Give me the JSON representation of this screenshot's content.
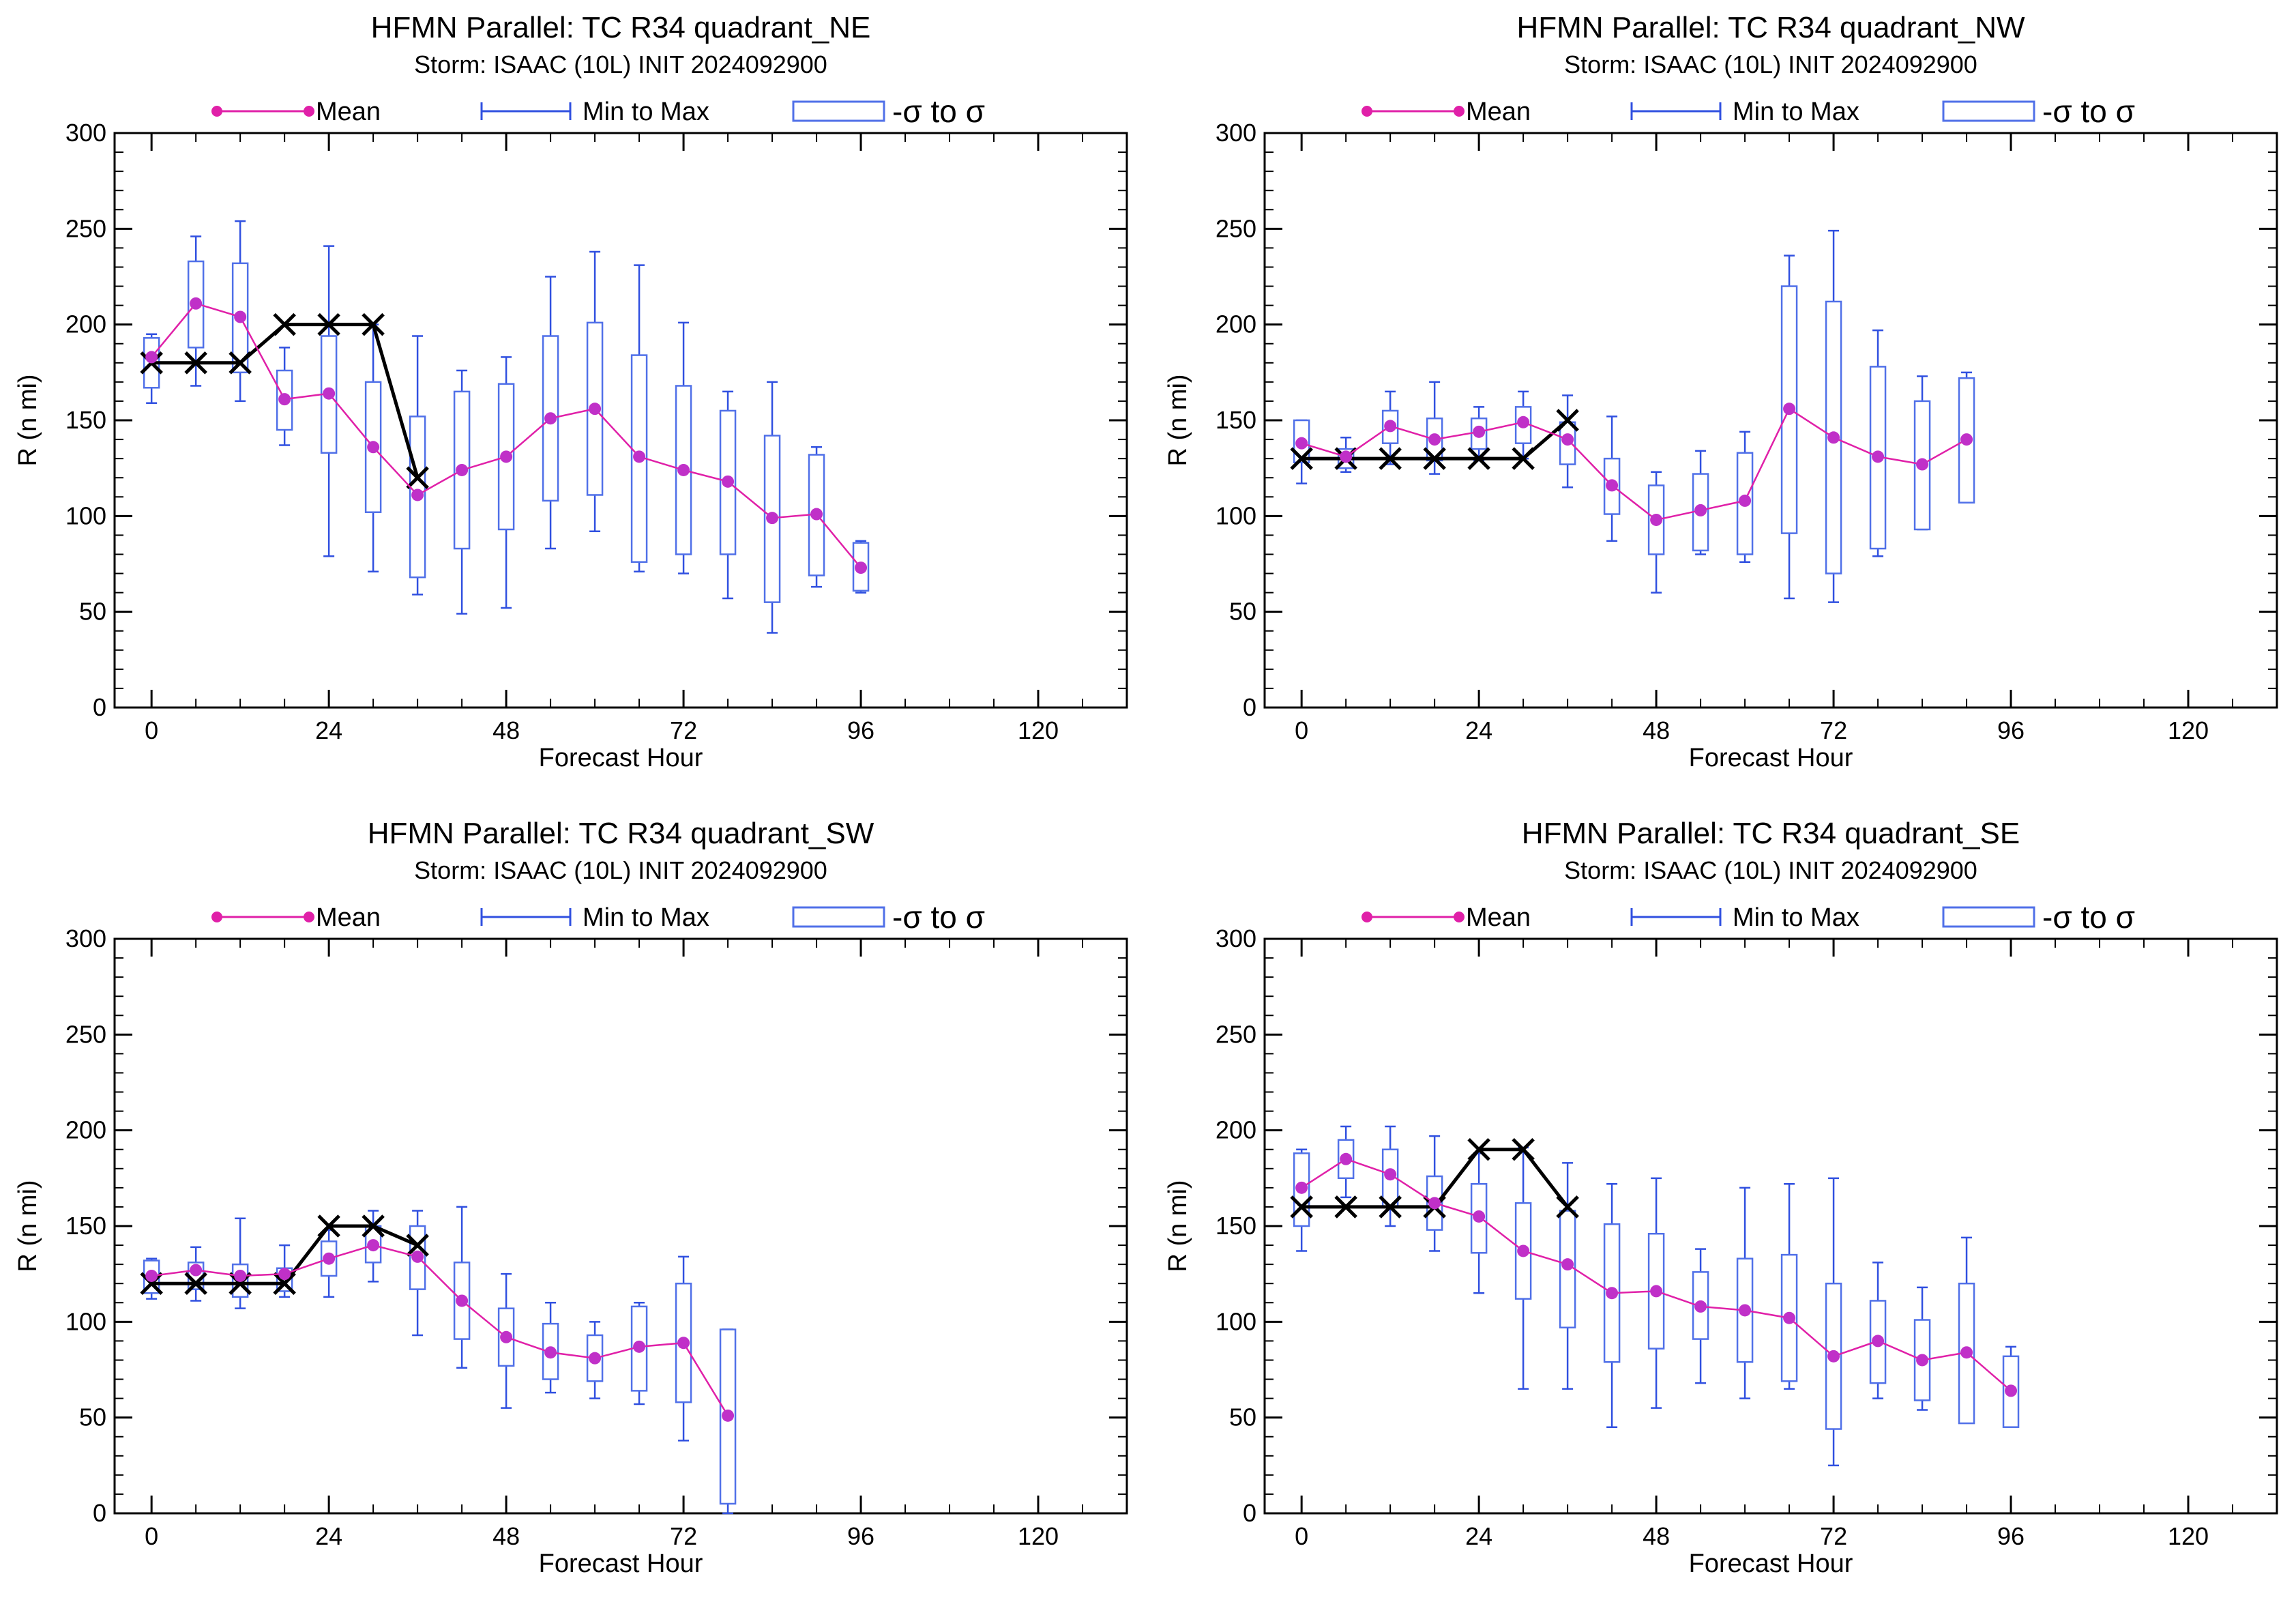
{
  "colors": {
    "mean": "#e020a8",
    "mean_marker": "#c030c8",
    "spread": "#3050e0",
    "sigma_box": "#5070e8",
    "best_track": "#000000"
  },
  "legend": {
    "mean": "Mean",
    "range": "Min to Max",
    "sigma": "-σ to σ"
  },
  "chart_data": [
    {
      "type": "box",
      "title": "HFMN Parallel: TC  R34 quadrant_NE",
      "subtitle": "Storm: ISAAC (10L) INIT 2024092900",
      "xlabel": "Forecast Hour",
      "ylabel": "R (n mi)",
      "xlim": [
        -5,
        132
      ],
      "ylim": [
        0,
        300
      ],
      "xticks": [
        0,
        24,
        48,
        72,
        96,
        120
      ],
      "yticks": [
        0,
        50,
        100,
        150,
        200,
        250,
        300
      ],
      "x": [
        0,
        6,
        12,
        18,
        24,
        30,
        36,
        42,
        48,
        54,
        60,
        66,
        72,
        78,
        84,
        90,
        96
      ],
      "mean": [
        183,
        211,
        204,
        161,
        164,
        136,
        111,
        124,
        131,
        151,
        156,
        131,
        124,
        118,
        99,
        101,
        73
      ],
      "min": [
        159,
        168,
        160,
        137,
        79,
        71,
        59,
        49,
        52,
        83,
        92,
        71,
        70,
        57,
        39,
        63,
        60
      ],
      "max": [
        195,
        246,
        254,
        188,
        241,
        200,
        194,
        176,
        183,
        225,
        238,
        231,
        201,
        165,
        170,
        136,
        87
      ],
      "sigma_low": [
        167,
        188,
        175,
        145,
        133,
        102,
        68,
        83,
        93,
        108,
        111,
        76,
        80,
        80,
        55,
        69,
        61
      ],
      "sigma_high": [
        193,
        233,
        232,
        176,
        194,
        170,
        152,
        165,
        169,
        194,
        201,
        184,
        168,
        155,
        142,
        132,
        86
      ],
      "best_track": {
        "x": [
          0,
          6,
          12,
          18,
          24,
          30,
          36
        ],
        "y": [
          180,
          180,
          180,
          200,
          200,
          200,
          120
        ]
      }
    },
    {
      "type": "box",
      "title": "HFMN Parallel: TC  R34 quadrant_NW",
      "subtitle": "Storm: ISAAC (10L) INIT 2024092900",
      "xlabel": "Forecast Hour",
      "ylabel": "R (n mi)",
      "xlim": [
        -5,
        132
      ],
      "ylim": [
        0,
        300
      ],
      "xticks": [
        0,
        24,
        48,
        72,
        96,
        120
      ],
      "yticks": [
        0,
        50,
        100,
        150,
        200,
        250,
        300
      ],
      "x": [
        0,
        6,
        12,
        18,
        24,
        30,
        36,
        42,
        48,
        54,
        60,
        66,
        72,
        78,
        84,
        90
      ],
      "mean": [
        138,
        131,
        147,
        140,
        144,
        149,
        140,
        116,
        98,
        103,
        108,
        156,
        141,
        131,
        127,
        140
      ],
      "min": [
        117,
        123,
        127,
        122,
        129,
        130,
        115,
        87,
        60,
        80,
        76,
        57,
        55,
        79,
        93,
        108
      ],
      "max": [
        150,
        141,
        165,
        170,
        157,
        165,
        163,
        152,
        123,
        134,
        144,
        236,
        249,
        197,
        173,
        175
      ],
      "sigma_low": [
        128,
        125,
        138,
        129,
        135,
        138,
        127,
        101,
        80,
        82,
        80,
        91,
        70,
        83,
        93,
        107
      ],
      "sigma_high": [
        150,
        135,
        155,
        151,
        151,
        157,
        149,
        130,
        116,
        122,
        133,
        220,
        212,
        178,
        160,
        172
      ],
      "best_track": {
        "x": [
          0,
          6,
          12,
          18,
          24,
          30,
          36
        ],
        "y": [
          130,
          130,
          130,
          130,
          130,
          130,
          150
        ]
      }
    },
    {
      "type": "box",
      "title": "HFMN Parallel: TC  R34 quadrant_SW",
      "subtitle": "Storm: ISAAC (10L) INIT 2024092900",
      "xlabel": "Forecast Hour",
      "ylabel": "R (n mi)",
      "xlim": [
        -5,
        132
      ],
      "ylim": [
        0,
        300
      ],
      "xticks": [
        0,
        24,
        48,
        72,
        96,
        120
      ],
      "yticks": [
        0,
        50,
        100,
        150,
        200,
        250,
        300
      ],
      "x": [
        0,
        6,
        12,
        18,
        24,
        30,
        36,
        42,
        48,
        54,
        60,
        66,
        72,
        78
      ],
      "mean": [
        124,
        127,
        124,
        125,
        133,
        140,
        134,
        111,
        92,
        84,
        81,
        87,
        89,
        51
      ],
      "min": [
        112,
        111,
        107,
        113,
        113,
        121,
        93,
        76,
        55,
        63,
        60,
        57,
        38,
        0
      ],
      "max": [
        133,
        139,
        154,
        140,
        148,
        158,
        158,
        160,
        125,
        110,
        100,
        110,
        134,
        96
      ],
      "sigma_low": [
        115,
        117,
        113,
        116,
        124,
        131,
        117,
        91,
        77,
        70,
        69,
        64,
        58,
        5
      ],
      "sigma_high": [
        132,
        131,
        130,
        128,
        142,
        150,
        150,
        131,
        107,
        99,
        93,
        108,
        120,
        96
      ],
      "best_track": {
        "x": [
          0,
          6,
          12,
          18,
          24,
          30,
          36
        ],
        "y": [
          120,
          120,
          120,
          120,
          150,
          150,
          140
        ]
      }
    },
    {
      "type": "box",
      "title": "HFMN Parallel: TC  R34 quadrant_SE",
      "subtitle": "Storm: ISAAC (10L) INIT 2024092900",
      "xlabel": "Forecast Hour",
      "ylabel": "R (n mi)",
      "xlim": [
        -5,
        132
      ],
      "ylim": [
        0,
        300
      ],
      "xticks": [
        0,
        24,
        48,
        72,
        96,
        120
      ],
      "yticks": [
        0,
        50,
        100,
        150,
        200,
        250,
        300
      ],
      "x": [
        0,
        6,
        12,
        18,
        24,
        30,
        36,
        42,
        48,
        54,
        60,
        66,
        72,
        78,
        84,
        90,
        96
      ],
      "mean": [
        170,
        185,
        177,
        162,
        155,
        137,
        130,
        115,
        116,
        108,
        106,
        102,
        82,
        90,
        80,
        84,
        64
      ],
      "min": [
        137,
        165,
        150,
        137,
        115,
        65,
        65,
        45,
        55,
        68,
        60,
        65,
        25,
        60,
        54,
        50,
        51
      ],
      "max": [
        190,
        202,
        202,
        197,
        188,
        191,
        183,
        172,
        175,
        138,
        170,
        172,
        175,
        131,
        118,
        144,
        87
      ],
      "sigma_low": [
        150,
        175,
        160,
        148,
        136,
        112,
        97,
        79,
        86,
        91,
        79,
        69,
        44,
        68,
        59,
        47,
        45
      ],
      "sigma_high": [
        188,
        195,
        190,
        176,
        172,
        162,
        158,
        151,
        146,
        126,
        133,
        135,
        120,
        111,
        101,
        120,
        82
      ],
      "best_track": {
        "x": [
          0,
          6,
          12,
          18,
          24,
          30,
          36
        ],
        "y": [
          160,
          160,
          160,
          160,
          190,
          190,
          160
        ]
      }
    }
  ]
}
